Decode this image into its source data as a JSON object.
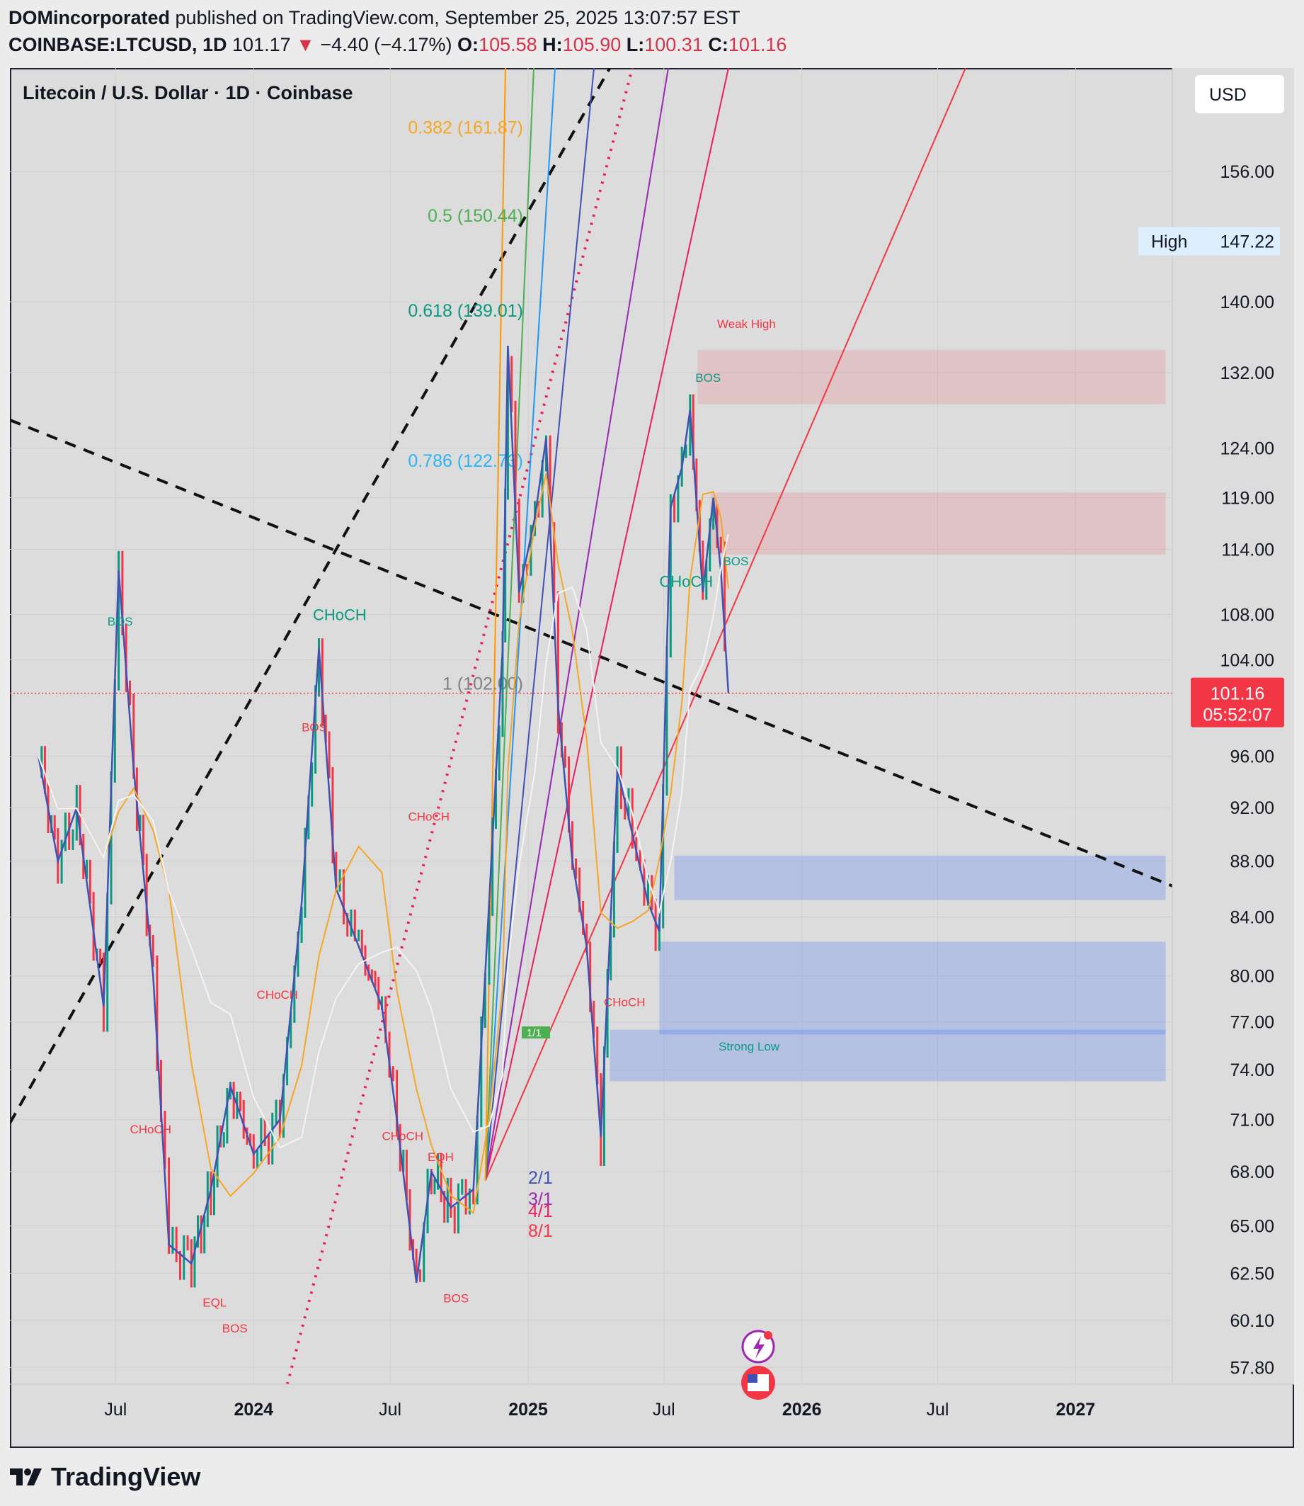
{
  "header": {
    "publisher": "DOMincorporated",
    "published_text": "published on TradingView.com, September 25, 2025 13:07:57 EST",
    "symbol": "COINBASE:LTCUSD, 1D",
    "last": "101.17",
    "change_arrow": "▼",
    "change": "−4.40 (−4.17%)",
    "open_label": "O:",
    "open": "105.58",
    "high_label": "H:",
    "high": "105.90",
    "low_label": "L:",
    "low": "100.31",
    "close_label": "C:",
    "close": "101.16"
  },
  "colors": {
    "up": "#089981",
    "down": "#f23645",
    "bg": "#dcdcdc"
  },
  "chart_data": {
    "type": "line",
    "title": "Litecoin / U.S. Dollar · 1D · Coinbase",
    "currency": "USD",
    "y_scale": "log",
    "ylim": [
      57.0,
      170.0
    ],
    "y_ticks": [
      "156.00",
      "140.00",
      "132.00",
      "124.00",
      "119.00",
      "114.00",
      "108.00",
      "104.00",
      "96.00",
      "92.00",
      "88.00",
      "84.00",
      "80.00",
      "77.00",
      "74.00",
      "71.00",
      "68.00",
      "65.00",
      "62.50",
      "60.10",
      "57.80"
    ],
    "x_ticks": [
      "Jul",
      "2024",
      "Jul",
      "2025",
      "Jul",
      "2026",
      "Jul",
      "2027"
    ],
    "series": [
      {
        "x": [
          "2023-03-20",
          "2023-04-15",
          "2023-05-10",
          "2023-06-15",
          "2023-07-05",
          "2023-07-25",
          "2023-08-20",
          "2023-09-10",
          "2023-10-10",
          "2023-11-05",
          "2023-12-01",
          "2024-01-01",
          "2024-02-05",
          "2024-03-05",
          "2024-03-28",
          "2024-04-20",
          "2024-05-20",
          "2024-06-20",
          "2024-07-10",
          "2024-08-05",
          "2024-08-25",
          "2024-09-20",
          "2024-10-20",
          "2024-11-10",
          "2024-11-28",
          "2024-12-05",
          "2024-12-20",
          "2025-01-10",
          "2025-01-25",
          "2025-02-10",
          "2025-03-01",
          "2025-03-20",
          "2025-04-08",
          "2025-04-30",
          "2025-05-20",
          "2025-06-10",
          "2025-06-25",
          "2025-07-10",
          "2025-07-25",
          "2025-08-05",
          "2025-08-22",
          "2025-09-05",
          "2025-09-15",
          "2025-09-25"
        ],
        "values": [
          96,
          88,
          92,
          78,
          112,
          95,
          80,
          64,
          63,
          67,
          73,
          69,
          71,
          85,
          105,
          86,
          82,
          78,
          71,
          62,
          68,
          66,
          67,
          85,
          105,
          135,
          110,
          117,
          125,
          100,
          88,
          82,
          70,
          95,
          90,
          85,
          83,
          118,
          122,
          128,
          110,
          119,
          112,
          101.16
        ]
      }
    ],
    "fib_levels": [
      {
        "label": "0.382 (161.87)",
        "value": 161.87
      },
      {
        "label": "0.5 (150.44)",
        "value": 150.44
      },
      {
        "label": "0.618 (139.01)",
        "value": 139.01
      },
      {
        "label": "0.786 (122.73)",
        "value": 122.73
      },
      {
        "label": "1 (102.00)",
        "value": 102.0
      }
    ],
    "gann_labels": [
      "2/1",
      "3/1",
      "4/1",
      "8/1",
      "1/1"
    ],
    "structure_labels": [
      {
        "text": "BOS",
        "x": "2023-06-20",
        "y": 107.0
      },
      {
        "text": "CHoCH",
        "x": "2024-03-20",
        "y": 107.5
      },
      {
        "text": "BOS",
        "x": "2024-03-05",
        "y": 98.0
      },
      {
        "text": "CHoCH",
        "x": "2024-07-25",
        "y": 91.0
      },
      {
        "text": "CHoCH",
        "x": "2024-01-05",
        "y": 78.5
      },
      {
        "text": "CHoCH",
        "x": "2023-07-20",
        "y": 70.2
      },
      {
        "text": "CHoCH",
        "x": "2024-06-20",
        "y": 69.8
      },
      {
        "text": "CHoCH",
        "x": "2025-04-12",
        "y": 78.0
      },
      {
        "text": "CHoCH",
        "x": "2025-06-25",
        "y": 110.5
      },
      {
        "text": "BOS",
        "x": "2025-08-12",
        "y": 131.0
      },
      {
        "text": "BOS",
        "x": "2025-09-18",
        "y": 112.5
      },
      {
        "text": "Weak High",
        "x": "2025-09-10",
        "y": 137.0
      },
      {
        "text": "Strong Low",
        "x": "2025-09-12",
        "y": 75.2
      },
      {
        "text": "EQL",
        "x": "2023-10-25",
        "y": 60.8
      },
      {
        "text": "BOS",
        "x": "2023-11-20",
        "y": 59.5
      },
      {
        "text": "EQH",
        "x": "2024-08-20",
        "y": 68.6
      },
      {
        "text": "BOS",
        "x": "2024-09-10",
        "y": 61.0
      }
    ],
    "zones": [
      {
        "kind": "supply",
        "from": "2025-08-15",
        "to": "2027-05-01",
        "top": 134.5,
        "bottom": 128.6
      },
      {
        "kind": "supply",
        "from": "2025-09-01",
        "to": "2027-05-01",
        "top": 119.5,
        "bottom": 113.5
      },
      {
        "kind": "demand",
        "from": "2025-07-15",
        "to": "2027-05-01",
        "top": 88.4,
        "bottom": 85.2
      },
      {
        "kind": "demand",
        "from": "2025-06-25",
        "to": "2027-05-01",
        "top": 82.3,
        "bottom": 76.2
      },
      {
        "kind": "demand",
        "from": "2025-04-20",
        "to": "2027-05-01",
        "top": 76.5,
        "bottom": 73.3
      }
    ],
    "badges": {
      "high_label": "High",
      "high_value": "147.22",
      "price": "101.16",
      "countdown": "05:52:07"
    },
    "grid": true
  },
  "footer": {
    "brand": "TradingView"
  }
}
